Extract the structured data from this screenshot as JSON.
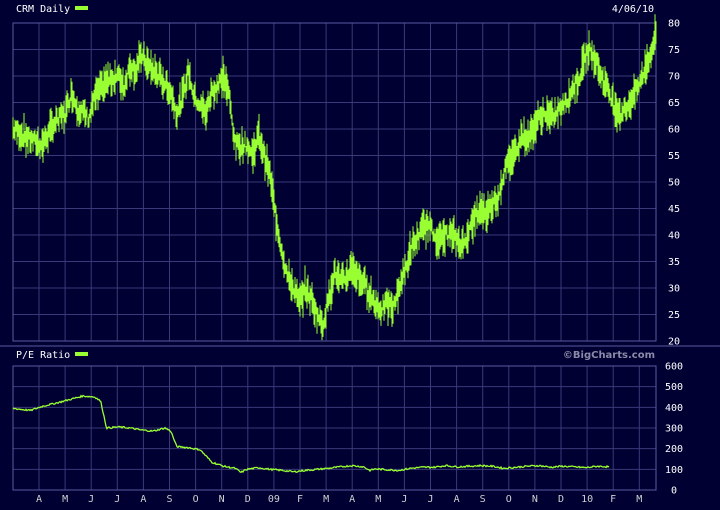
{
  "colors": {
    "background": "#000033",
    "grid": "#3a3a7a",
    "frame": "#5a5aa0",
    "series": "#99ff33",
    "text": "#ffffff"
  },
  "price_panel": {
    "title": "CRM Daily",
    "date_label": "4/06/10",
    "watermark": "©BigCharts.com"
  },
  "pe_panel": {
    "title": "P/E Ratio"
  },
  "chart_data": [
    {
      "type": "line",
      "series": [
        {
          "name": "CRM Daily",
          "points": [
            [
              0,
              60
            ],
            [
              3,
              58
            ],
            [
              5,
              57
            ],
            [
              7,
              61
            ],
            [
              9,
              63
            ],
            [
              10,
              67
            ],
            [
              11,
              64
            ],
            [
              13,
              62
            ],
            [
              14,
              66
            ],
            [
              16,
              69
            ],
            [
              18,
              70
            ],
            [
              19,
              68
            ],
            [
              20,
              72
            ],
            [
              21,
              71
            ],
            [
              22,
              74
            ],
            [
              23,
              72
            ],
            [
              25,
              70
            ],
            [
              27,
              67
            ],
            [
              28,
              63
            ],
            [
              29,
              66
            ],
            [
              30,
              71
            ],
            [
              31,
              66
            ],
            [
              33,
              63
            ],
            [
              34,
              67
            ],
            [
              35,
              68
            ],
            [
              36,
              70
            ],
            [
              37,
              66
            ],
            [
              38,
              57
            ],
            [
              40,
              57
            ],
            [
              41,
              55
            ],
            [
              42,
              59
            ],
            [
              43,
              55
            ],
            [
              44,
              51
            ],
            [
              45,
              43
            ],
            [
              46,
              37
            ],
            [
              47,
              32
            ],
            [
              48,
              30
            ],
            [
              49,
              27
            ],
            [
              50,
              30
            ],
            [
              51,
              28
            ],
            [
              52,
              25
            ],
            [
              53,
              23
            ],
            [
              54,
              28
            ],
            [
              55,
              33
            ],
            [
              56,
              31
            ],
            [
              57,
              32
            ],
            [
              58,
              34
            ],
            [
              59,
              32
            ],
            [
              60,
              31
            ],
            [
              61,
              29
            ],
            [
              62,
              27
            ],
            [
              63,
              26
            ],
            [
              64,
              27
            ],
            [
              65,
              26
            ],
            [
              66,
              30
            ],
            [
              67,
              33
            ],
            [
              68,
              37
            ],
            [
              69,
              39
            ],
            [
              70,
              41
            ],
            [
              71,
              42
            ],
            [
              72,
              40
            ],
            [
              73,
              39
            ],
            [
              74,
              40
            ],
            [
              75,
              40
            ],
            [
              76,
              39
            ],
            [
              77,
              38
            ],
            [
              78,
              41
            ],
            [
              79,
              43
            ],
            [
              80,
              45
            ],
            [
              81,
              44
            ],
            [
              82,
              46
            ],
            [
              83,
              47
            ],
            [
              84,
              52
            ],
            [
              85,
              54
            ],
            [
              86,
              56
            ],
            [
              87,
              59
            ],
            [
              88,
              58
            ],
            [
              89,
              60
            ],
            [
              90,
              62
            ],
            [
              91,
              63
            ],
            [
              92,
              62
            ],
            [
              93,
              63
            ],
            [
              94,
              64
            ],
            [
              95,
              66
            ],
            [
              96,
              68
            ],
            [
              97,
              70
            ],
            [
              98,
              74
            ],
            [
              99,
              75
            ],
            [
              100,
              72
            ],
            [
              101,
              69
            ],
            [
              102,
              67
            ],
            [
              103,
              64
            ],
            [
              104,
              63
            ],
            [
              105,
              64
            ],
            [
              106,
              66
            ],
            [
              107,
              68
            ],
            [
              108,
              71
            ],
            [
              109,
              74
            ],
            [
              110,
              78
            ]
          ]
        },
        {
          "name": "P/E Ratio",
          "points": [
            [
              0,
              395
            ],
            [
              3,
              385
            ],
            [
              5,
              405
            ],
            [
              8,
              425
            ],
            [
              10,
              440
            ],
            [
              12,
              455
            ],
            [
              14,
              450
            ],
            [
              15,
              430
            ],
            [
              16,
              300
            ],
            [
              18,
              305
            ],
            [
              20,
              300
            ],
            [
              22,
              290
            ],
            [
              24,
              285
            ],
            [
              26,
              300
            ],
            [
              27,
              285
            ],
            [
              28,
              210
            ],
            [
              30,
              205
            ],
            [
              32,
              195
            ],
            [
              33,
              165
            ],
            [
              34,
              135
            ],
            [
              36,
              115
            ],
            [
              38,
              105
            ],
            [
              39,
              85
            ],
            [
              40,
              100
            ],
            [
              42,
              108
            ],
            [
              44,
              100
            ],
            [
              46,
              95
            ],
            [
              48,
              88
            ],
            [
              50,
              95
            ],
            [
              52,
              100
            ],
            [
              54,
              105
            ],
            [
              56,
              112
            ],
            [
              58,
              118
            ],
            [
              60,
              112
            ],
            [
              61,
              95
            ],
            [
              62,
              102
            ],
            [
              64,
              98
            ],
            [
              66,
              95
            ],
            [
              68,
              105
            ],
            [
              70,
              110
            ],
            [
              72,
              110
            ],
            [
              74,
              118
            ],
            [
              76,
              112
            ],
            [
              78,
              115
            ],
            [
              80,
              118
            ],
            [
              82,
              115
            ],
            [
              84,
              105
            ],
            [
              86,
              110
            ],
            [
              88,
              115
            ],
            [
              90,
              118
            ],
            [
              92,
              110
            ],
            [
              94,
              115
            ],
            [
              96,
              112
            ],
            [
              98,
              108
            ],
            [
              100,
              115
            ],
            [
              102,
              112
            ]
          ]
        }
      ],
      "x_ticks": [
        "A",
        "M",
        "J",
        "J",
        "A",
        "S",
        "O",
        "N",
        "D",
        "09",
        "F",
        "M",
        "A",
        "M",
        "J",
        "J",
        "A",
        "S",
        "O",
        "N",
        "D",
        "10",
        "F",
        "M"
      ],
      "price_axis": {
        "ticks": [
          20,
          25,
          30,
          35,
          40,
          45,
          50,
          55,
          60,
          65,
          70,
          75,
          80
        ],
        "range": [
          20,
          80
        ]
      },
      "pe_axis": {
        "ticks": [
          0,
          100,
          200,
          300,
          400,
          500,
          600
        ],
        "range": [
          0,
          600
        ]
      },
      "grid": true,
      "legend": "top-left"
    }
  ]
}
